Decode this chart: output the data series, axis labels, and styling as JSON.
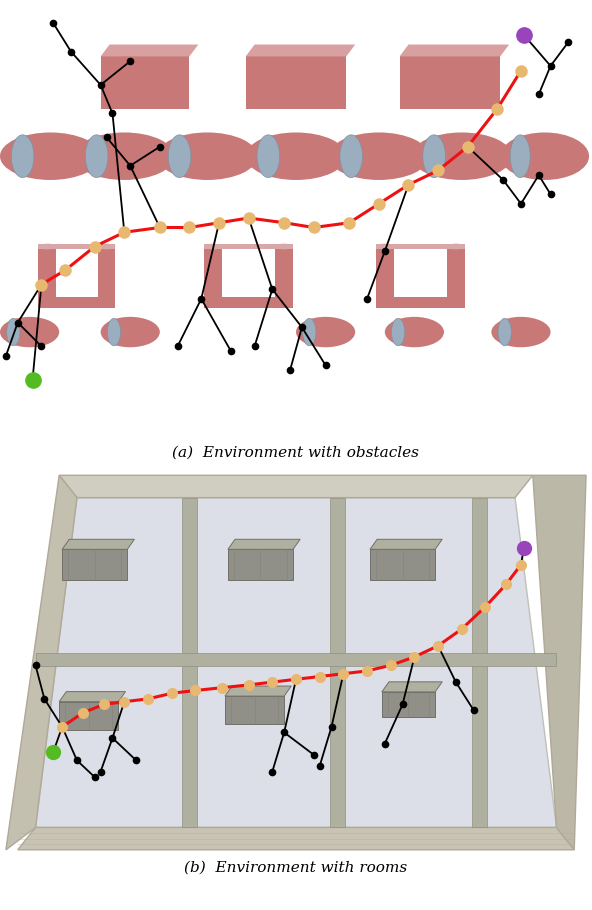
{
  "fig_width": 5.92,
  "fig_height": 9.1,
  "dpi": 100,
  "caption_a": "(a)  Environment with obstacles",
  "caption_b": "(b)  Environment with rooms",
  "caption_fontsize": 11,
  "bg_color_top": "#ffffff",
  "bg_color_bottom": "#7a6e62",
  "obstacle_color": "#c97878",
  "cylinder_side_color": "#b08898",
  "cylinder_top_color": "#9aaec0",
  "box_color": "#c97878",
  "path_red": "#ee1111",
  "path_node_color": "#e8b870",
  "tree_color": "#000000",
  "start_color": "#55bb22",
  "goal_color": "#9944bb",
  "room_floor_color": "#dcdee8",
  "room_frame_color": "#d0cfc0",
  "room_wall_color": "#b0b0a0",
  "room_obs_color": "#909088",
  "room_obs_top_color": "#b0b0a0"
}
